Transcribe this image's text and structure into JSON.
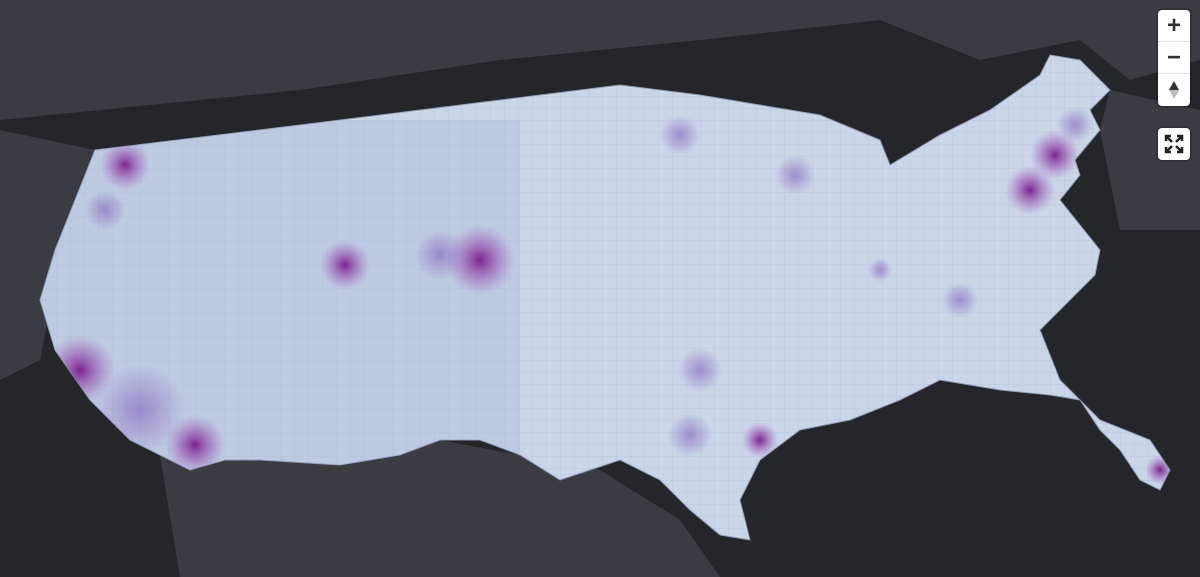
{
  "controls": {
    "zoom_in": "+",
    "zoom_out": "−"
  }
}
